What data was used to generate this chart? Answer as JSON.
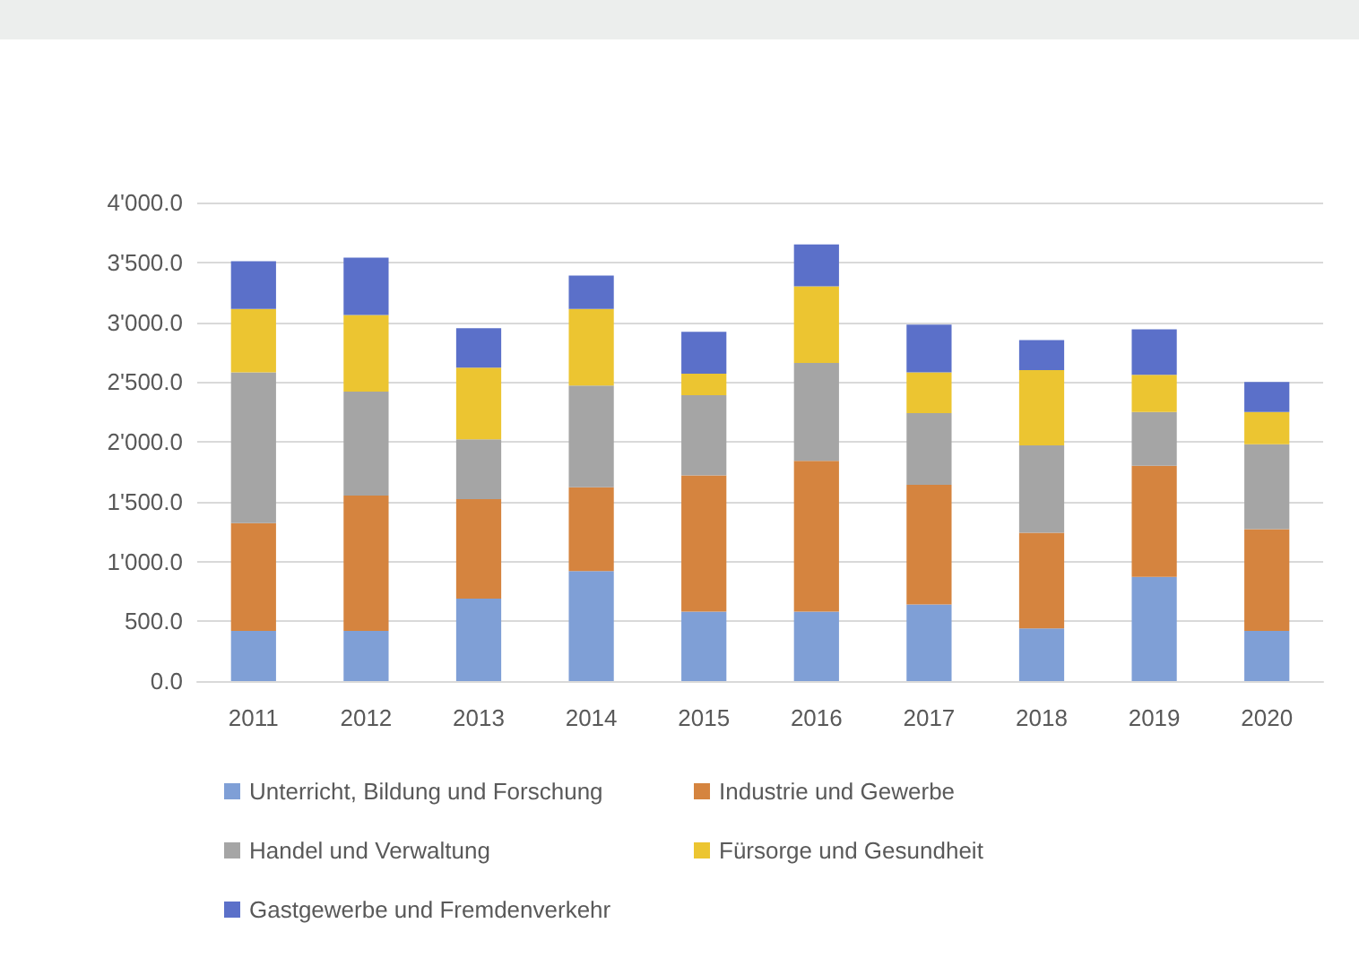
{
  "chart_data": {
    "type": "bar",
    "stacked": true,
    "categories": [
      "2011",
      "2012",
      "2013",
      "2014",
      "2015",
      "2016",
      "2017",
      "2018",
      "2019",
      "2020"
    ],
    "series": [
      {
        "name": "Unterricht, Bildung und Forschung",
        "color": "#7f9fd6",
        "values": [
          420,
          420,
          690,
          920,
          580,
          580,
          640,
          440,
          870,
          420
        ]
      },
      {
        "name": "Industrie und Gewerbe",
        "color": "#d5843f",
        "values": [
          900,
          1130,
          830,
          700,
          1140,
          1260,
          1000,
          800,
          930,
          850
        ]
      },
      {
        "name": "Handel und Verwaltung",
        "color": "#a5a5a5",
        "values": [
          1260,
          870,
          500,
          850,
          670,
          820,
          600,
          730,
          450,
          710
        ]
      },
      {
        "name": "Fürsorge und Gesundheit",
        "color": "#ecc531",
        "values": [
          530,
          640,
          600,
          640,
          180,
          640,
          340,
          630,
          310,
          270
        ]
      },
      {
        "name": "Gastgewerbe und Fremdenverkehr",
        "color": "#5b70c9",
        "values": [
          400,
          480,
          330,
          280,
          350,
          350,
          400,
          250,
          380,
          250
        ]
      }
    ],
    "ylim": [
      0,
      4000
    ],
    "yticks": [
      {
        "value": 0,
        "label": "0.0"
      },
      {
        "value": 500,
        "label": "500.0"
      },
      {
        "value": 1000,
        "label": "1'000.0"
      },
      {
        "value": 1500,
        "label": "1'500.0"
      },
      {
        "value": 2000,
        "label": "2'000.0"
      },
      {
        "value": 2500,
        "label": "2'500.0"
      },
      {
        "value": 3000,
        "label": "3'000.0"
      },
      {
        "value": 3500,
        "label": "3'500.0"
      },
      {
        "value": 4000,
        "label": "4'000.0"
      }
    ],
    "grid": "y",
    "legend": "bottom"
  }
}
